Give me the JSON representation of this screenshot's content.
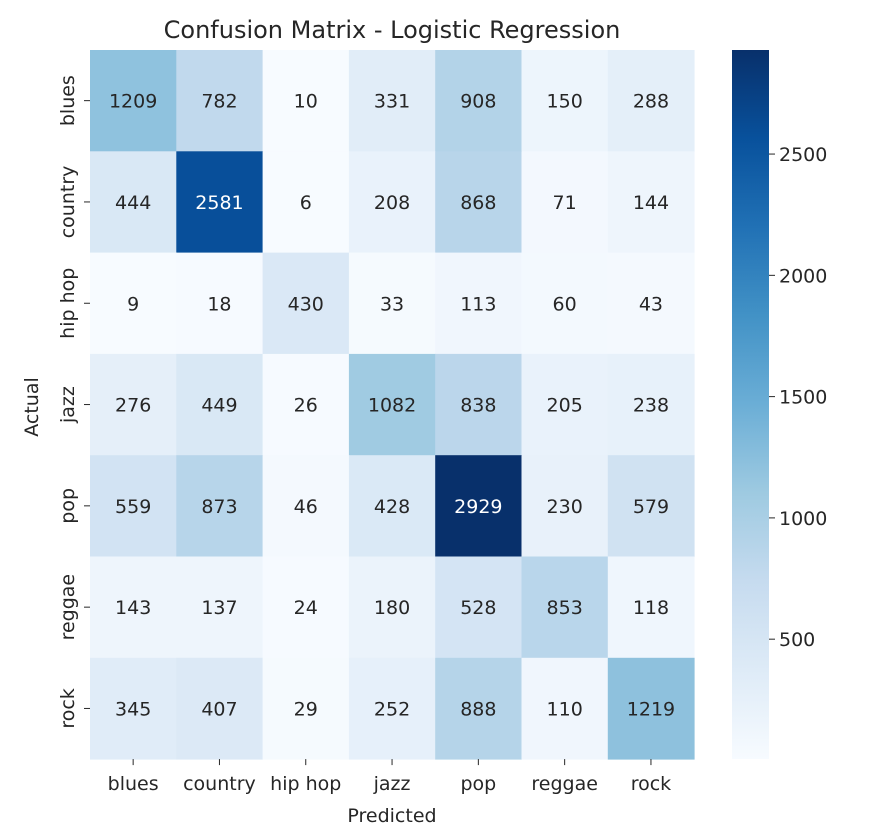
{
  "chart_data": {
    "type": "heatmap",
    "title": "Confusion Matrix - Logistic Regression",
    "xlabel": "Predicted",
    "ylabel": "Actual",
    "x_categories": [
      "blues",
      "country",
      "hip hop",
      "jazz",
      "pop",
      "reggae",
      "rock"
    ],
    "y_categories": [
      "blues",
      "country",
      "hip hop",
      "jazz",
      "pop",
      "reggae",
      "rock"
    ],
    "values": [
      [
        1209,
        782,
        10,
        331,
        908,
        150,
        288
      ],
      [
        444,
        2581,
        6,
        208,
        868,
        71,
        144
      ],
      [
        9,
        18,
        430,
        33,
        113,
        60,
        43
      ],
      [
        276,
        449,
        26,
        1082,
        838,
        205,
        238
      ],
      [
        559,
        873,
        46,
        428,
        2929,
        230,
        579
      ],
      [
        143,
        137,
        24,
        180,
        528,
        853,
        118
      ],
      [
        345,
        407,
        29,
        252,
        888,
        110,
        1219
      ]
    ],
    "colormap": "Blues",
    "colorbar": {
      "range": [
        6,
        2929
      ],
      "ticks": [
        500,
        1000,
        1500,
        2000,
        2500
      ]
    }
  }
}
